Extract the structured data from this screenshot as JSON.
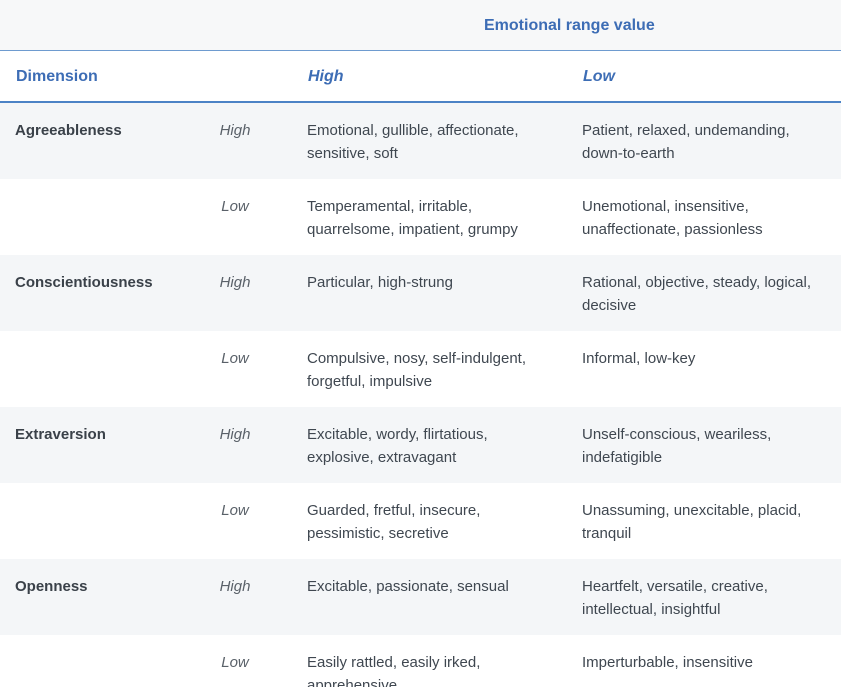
{
  "table": {
    "group_header": "Emotional range value",
    "columns": {
      "dimension": "Dimension",
      "high": "High",
      "low": "Low"
    },
    "rows": [
      {
        "dimension": "Agreeableness",
        "level": "High",
        "high": "Emotional, gullible, affectionate, sensitive, soft",
        "low": "Patient, relaxed, undemanding, down-to-earth"
      },
      {
        "dimension": "",
        "level": "Low",
        "high": "Temperamental, irritable, quarrelsome, impatient, grumpy",
        "low": "Unemotional, insensitive, unaffectionate, passionless"
      },
      {
        "dimension": "Conscientiousness",
        "level": "High",
        "high": "Particular, high-strung",
        "low": "Rational, objective, steady, logical, decisive"
      },
      {
        "dimension": "",
        "level": "Low",
        "high": "Compulsive, nosy, self-indulgent, forgetful, impulsive",
        "low": "Informal, low-key"
      },
      {
        "dimension": "Extraversion",
        "level": "High",
        "high": "Excitable, wordy, flirtatious, explosive, extravagant",
        "low": "Unself-conscious, weariless, indefatigible"
      },
      {
        "dimension": "",
        "level": "Low",
        "high": "Guarded, fretful, insecure, pessimistic, secretive",
        "low": "Unassuming, unexcitable, placid, tranquil"
      },
      {
        "dimension": "Openness",
        "level": "High",
        "high": "Excitable, passionate, sensual",
        "low": "Heartfelt, versatile, creative, intellectual, insightful"
      },
      {
        "dimension": "",
        "level": "Low",
        "high": "Easily rattled, easily irked, apprehensive",
        "low": "Imperturbable, insensitive"
      }
    ]
  }
}
